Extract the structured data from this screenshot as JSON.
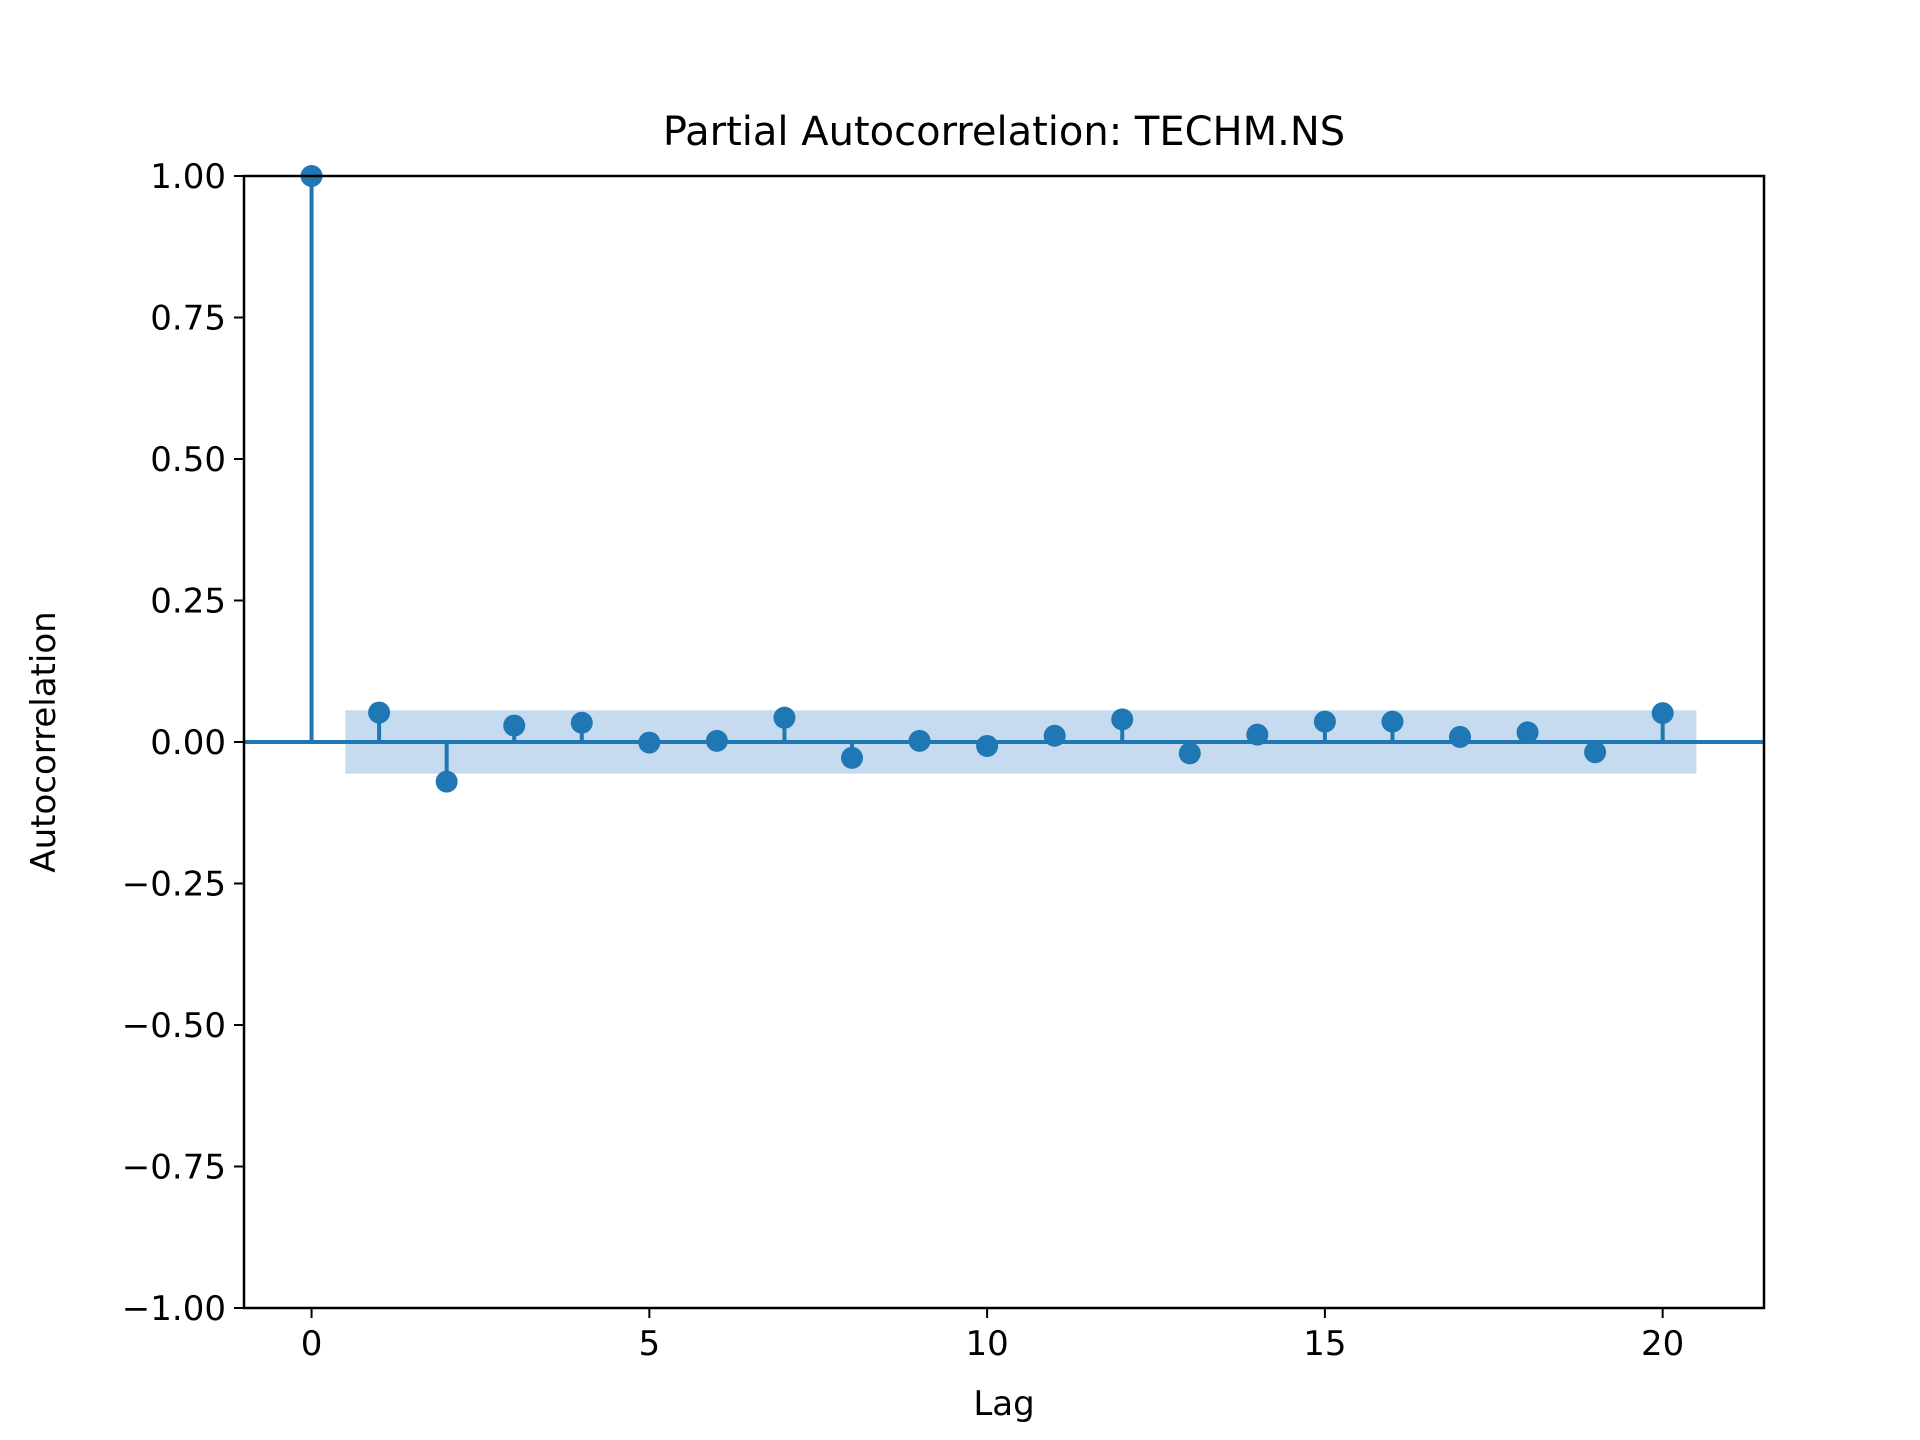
{
  "chart_data": {
    "type": "scatter",
    "style": "stem",
    "title": "Partial Autocorrelation: TECHM.NS",
    "xlabel": "Lag",
    "ylabel": "Autocorrelation",
    "xlim": [
      -1,
      21.5
    ],
    "ylim": [
      -1.0,
      1.0
    ],
    "xticks": [
      0,
      5,
      10,
      15,
      20
    ],
    "xtick_labels": [
      "0",
      "5",
      "10",
      "15",
      "20"
    ],
    "yticks": [
      1.0,
      0.75,
      0.5,
      0.25,
      0.0,
      -0.25,
      -0.5,
      -0.75,
      -1.0
    ],
    "ytick_labels": [
      "1.00",
      "0.75",
      "0.50",
      "0.25",
      "0.00",
      "−0.25",
      "−0.50",
      "−0.75",
      "−1.00"
    ],
    "grid": false,
    "series": [
      {
        "x": [
          0,
          1,
          2,
          3,
          4,
          5,
          6,
          7,
          8,
          9,
          10,
          11,
          12,
          13,
          14,
          15,
          16,
          17,
          18,
          19,
          20
        ],
        "values": [
          1.0,
          0.052,
          -0.07,
          0.029,
          0.034,
          -0.001,
          0.002,
          0.043,
          -0.028,
          0.002,
          -0.007,
          0.011,
          0.04,
          -0.02,
          0.013,
          0.036,
          0.036,
          0.009,
          0.017,
          -0.018,
          0.051
        ]
      }
    ],
    "confidence_band": {
      "x": [
        0.5,
        20.5
      ],
      "upper": 0.056,
      "lower": -0.056
    },
    "colors": {
      "series": "#1f77b4",
      "band": "#c6dbef",
      "axes": "#000000"
    }
  }
}
